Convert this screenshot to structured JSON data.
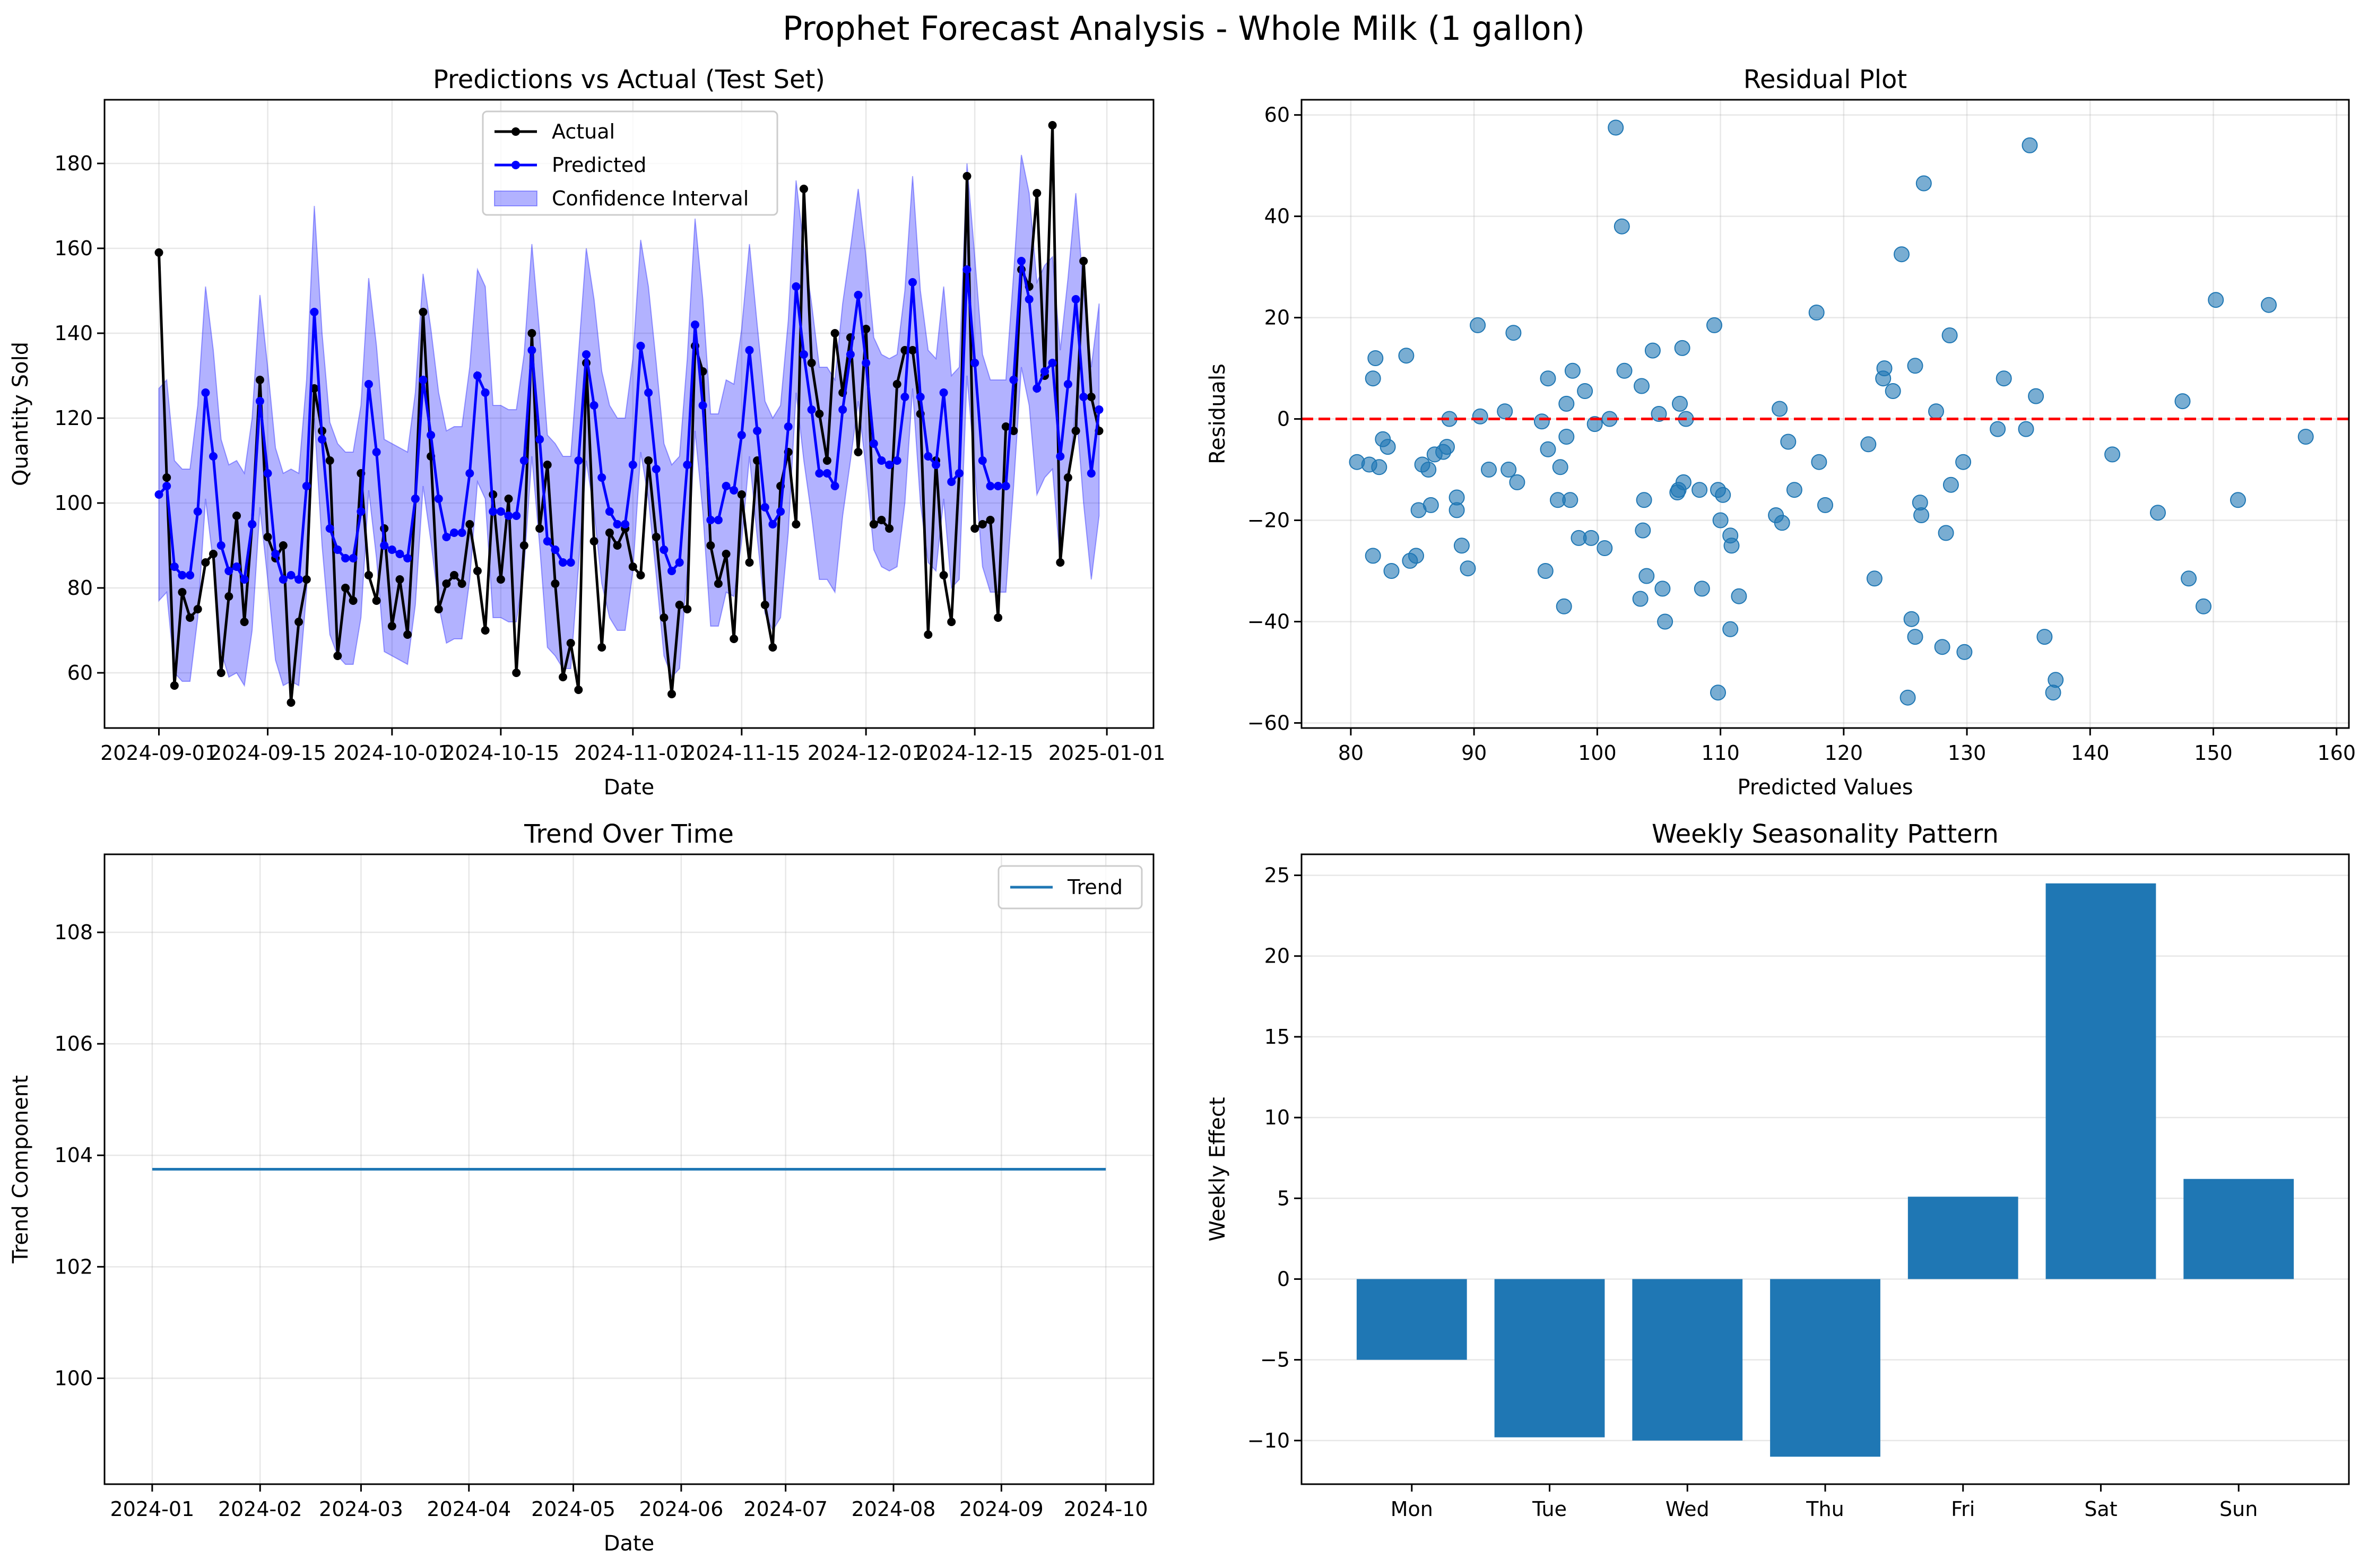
{
  "suptitle": "Prophet Forecast Analysis - Whole Milk (1 gallon)",
  "chart_data": [
    {
      "type": "line",
      "title": "Predictions vs Actual (Test Set)",
      "xlabel": "Date",
      "ylabel": "Quantity Sold",
      "x_start": "2024-09-01",
      "x_end": "2024-12-31",
      "xlim": [
        "2024-08-25",
        "2025-01-07"
      ],
      "ylim": [
        47,
        195
      ],
      "x_ticks": [
        "2024-09-01",
        "2024-09-15",
        "2024-10-01",
        "2024-10-15",
        "2024-11-01",
        "2024-11-15",
        "2024-12-01",
        "2024-12-15",
        "2025-01-01"
      ],
      "y_ticks": [
        60,
        80,
        100,
        120,
        140,
        160,
        180
      ],
      "legend_position": "upper-center",
      "grid": true,
      "series": [
        {
          "name": "Actual",
          "color": "#000000",
          "marker": "circle",
          "values": [
            159,
            106,
            57,
            79,
            73,
            75,
            86,
            88,
            60,
            78,
            97,
            72,
            95,
            129,
            92,
            87,
            90,
            53,
            72,
            82,
            127,
            117,
            110,
            64,
            80,
            77,
            107,
            83,
            77,
            94,
            71,
            82,
            69,
            101,
            145,
            111,
            75,
            81,
            83,
            81,
            95,
            84,
            70,
            102,
            82,
            101,
            60,
            90,
            140,
            94,
            109,
            81,
            59,
            67,
            56,
            133,
            91,
            66,
            93,
            90,
            94,
            85,
            83,
            110,
            92,
            73,
            55,
            76,
            75,
            137,
            131,
            90,
            81,
            88,
            68,
            102,
            86,
            110,
            76,
            66,
            104,
            112,
            95,
            174,
            133,
            121,
            110,
            140,
            126,
            139,
            112,
            141,
            95,
            96,
            94,
            128,
            136,
            136,
            121,
            69,
            110,
            83,
            72,
            107,
            177,
            94,
            95,
            96,
            73,
            118,
            117,
            155,
            151,
            173,
            130,
            189,
            86,
            106,
            117,
            157,
            125,
            117
          ]
        },
        {
          "name": "Predicted",
          "color": "#0000ff",
          "marker": "circle",
          "values": [
            102,
            104,
            85,
            83,
            83,
            98,
            126,
            111,
            90,
            84,
            85,
            82,
            95,
            124,
            107,
            88,
            82,
            83,
            82,
            104,
            145,
            115,
            94,
            89,
            87,
            87,
            98,
            128,
            112,
            90,
            89,
            88,
            87,
            101,
            129,
            116,
            101,
            92,
            93,
            93,
            107,
            130,
            126,
            98,
            98,
            97,
            97,
            110,
            136,
            115,
            91,
            89,
            86,
            86,
            110,
            135,
            123,
            106,
            98,
            95,
            95,
            109,
            137,
            126,
            108,
            89,
            84,
            86,
            109,
            142,
            123,
            96,
            96,
            104,
            103,
            116,
            136,
            117,
            99,
            95,
            98,
            118,
            151,
            135,
            122,
            107,
            107,
            104,
            122,
            135,
            149,
            133,
            114,
            110,
            109,
            110,
            125,
            152,
            125,
            111,
            109,
            126,
            105,
            107,
            155,
            133,
            110,
            104,
            104,
            104,
            129,
            157,
            148,
            127,
            131,
            133,
            111,
            128,
            148,
            125,
            107,
            122
          ]
        },
        {
          "name": "Confidence Interval",
          "color": "#0000ff",
          "alpha": 0.3,
          "band_offset": 25
        }
      ]
    },
    {
      "type": "scatter",
      "title": "Residual Plot",
      "xlabel": "Predicted Values",
      "ylabel": "Residuals",
      "xlim": [
        76,
        161
      ],
      "ylim": [
        -61,
        63
      ],
      "x_ticks": [
        80,
        90,
        100,
        110,
        120,
        130,
        140,
        150,
        160
      ],
      "y_ticks": [
        -60,
        -40,
        -20,
        0,
        20,
        40,
        60
      ],
      "reference_line": {
        "y": 0,
        "color": "#ff0000",
        "style": "dashed"
      },
      "grid": true,
      "color": "#1f77b4",
      "points": [
        [
          80.5,
          -8.5
        ],
        [
          81.5,
          -9
        ],
        [
          81.8,
          -27
        ],
        [
          81.8,
          8
        ],
        [
          82,
          12
        ],
        [
          82.3,
          -9.5
        ],
        [
          82.6,
          -4
        ],
        [
          83,
          -5.5
        ],
        [
          83.3,
          -30
        ],
        [
          84.5,
          12.5
        ],
        [
          84.8,
          -28
        ],
        [
          85.3,
          -27
        ],
        [
          85.5,
          -18
        ],
        [
          85.8,
          -9
        ],
        [
          86.3,
          -10
        ],
        [
          86.5,
          -17
        ],
        [
          86.8,
          -7
        ],
        [
          87.5,
          -6.5
        ],
        [
          87.8,
          -5.5
        ],
        [
          88,
          0
        ],
        [
          88.6,
          -15.5
        ],
        [
          88.6,
          -18
        ],
        [
          89,
          -25
        ],
        [
          89.5,
          -29.5
        ],
        [
          90.3,
          18.5
        ],
        [
          90.5,
          0.5
        ],
        [
          91.2,
          -10
        ],
        [
          92.5,
          1.5
        ],
        [
          92.8,
          -10
        ],
        [
          93.2,
          17
        ],
        [
          93.5,
          -12.5
        ],
        [
          95.5,
          -0.5
        ],
        [
          95.8,
          -30
        ],
        [
          96,
          -6
        ],
        [
          96,
          8
        ],
        [
          96.8,
          -16
        ],
        [
          97,
          -9.5
        ],
        [
          97.3,
          -37
        ],
        [
          97.5,
          -3.5
        ],
        [
          97.5,
          3
        ],
        [
          97.8,
          -16
        ],
        [
          98,
          9.5
        ],
        [
          98.5,
          -23.5
        ],
        [
          99,
          5.5
        ],
        [
          99.5,
          -23.5
        ],
        [
          99.8,
          -1
        ],
        [
          100.6,
          -25.5
        ],
        [
          101,
          0
        ],
        [
          101.5,
          57.5
        ],
        [
          102,
          38
        ],
        [
          102.2,
          9.5
        ],
        [
          103.5,
          -35.5
        ],
        [
          103.6,
          6.5
        ],
        [
          103.7,
          -22
        ],
        [
          103.8,
          -16
        ],
        [
          104,
          -31
        ],
        [
          104.5,
          13.5
        ],
        [
          105,
          1
        ],
        [
          105.3,
          -33.5
        ],
        [
          105.5,
          -40
        ],
        [
          106.5,
          -14.5
        ],
        [
          106.6,
          -14
        ],
        [
          106.7,
          3
        ],
        [
          106.9,
          14
        ],
        [
          107,
          -12.5
        ],
        [
          107.2,
          0
        ],
        [
          108.3,
          -14
        ],
        [
          108.5,
          -33.5
        ],
        [
          109.5,
          18.5
        ],
        [
          109.8,
          -14
        ],
        [
          109.8,
          -54
        ],
        [
          110,
          -20
        ],
        [
          110.2,
          -15
        ],
        [
          110.8,
          -23
        ],
        [
          110.9,
          -25
        ],
        [
          110.8,
          -41.5
        ],
        [
          111.5,
          -35
        ],
        [
          114.5,
          -19
        ],
        [
          114.8,
          2
        ],
        [
          115,
          -20.5
        ],
        [
          115.5,
          -4.5
        ],
        [
          116,
          -14
        ],
        [
          117.8,
          21
        ],
        [
          118,
          -8.5
        ],
        [
          118.5,
          -17
        ],
        [
          122,
          -5
        ],
        [
          122.5,
          -31.5
        ],
        [
          123.2,
          8
        ],
        [
          123.3,
          10
        ],
        [
          124,
          5.5
        ],
        [
          124.7,
          32.5
        ],
        [
          125.2,
          -55
        ],
        [
          125.5,
          -39.5
        ],
        [
          125.8,
          -43
        ],
        [
          125.8,
          10.5
        ],
        [
          126.2,
          -16.5
        ],
        [
          126.3,
          -19
        ],
        [
          126.5,
          46.5
        ],
        [
          127.5,
          1.5
        ],
        [
          128,
          -45
        ],
        [
          128.3,
          -22.5
        ],
        [
          128.6,
          16.5
        ],
        [
          128.7,
          -13
        ],
        [
          129.7,
          -8.5
        ],
        [
          129.8,
          -46
        ],
        [
          132.5,
          -2
        ],
        [
          133,
          8
        ],
        [
          134.8,
          -2
        ],
        [
          135.1,
          54
        ],
        [
          135.6,
          4.5
        ],
        [
          136.3,
          -43
        ],
        [
          137,
          -54
        ],
        [
          137.2,
          -51.5
        ],
        [
          141.8,
          -7
        ],
        [
          145.5,
          -18.5
        ],
        [
          147.5,
          3.5
        ],
        [
          148,
          -31.5
        ],
        [
          149.2,
          -37
        ],
        [
          150.2,
          23.5
        ],
        [
          152,
          -16
        ],
        [
          154.5,
          22.5
        ],
        [
          157.5,
          -3.5
        ]
      ]
    },
    {
      "type": "line",
      "title": "Trend Over Time",
      "xlabel": "Date",
      "ylabel": "Trend Component",
      "x_ticks": [
        "2024-01",
        "2024-02",
        "2024-03",
        "2024-04",
        "2024-05",
        "2024-06",
        "2024-07",
        "2024-08",
        "2024-09",
        "2024-10"
      ],
      "y_ticks": [
        100,
        102,
        104,
        106,
        108
      ],
      "ylim": [
        98.1,
        109.4
      ],
      "x_range": [
        "2024-01-01",
        "2024-10-01"
      ],
      "legend_position": "upper-right",
      "grid": true,
      "series": [
        {
          "name": "Trend",
          "color": "#1f77b4",
          "x": [
            "2024-01-01",
            "2024-10-01"
          ],
          "values": [
            103.75,
            103.75
          ]
        }
      ]
    },
    {
      "type": "bar",
      "title": "Weekly Seasonality Pattern",
      "xlabel": "",
      "ylabel": "Weekly Effect",
      "ylim": [
        -12.7,
        26.3
      ],
      "y_ticks": [
        -10,
        -5,
        0,
        5,
        10,
        15,
        20,
        25
      ],
      "categories": [
        "Mon",
        "Tue",
        "Wed",
        "Thu",
        "Fri",
        "Sat",
        "Sun"
      ],
      "values": [
        -5.0,
        -9.8,
        -10.0,
        -11.0,
        5.1,
        24.5,
        6.2
      ],
      "color": "#1f77b4",
      "grid": true
    }
  ]
}
